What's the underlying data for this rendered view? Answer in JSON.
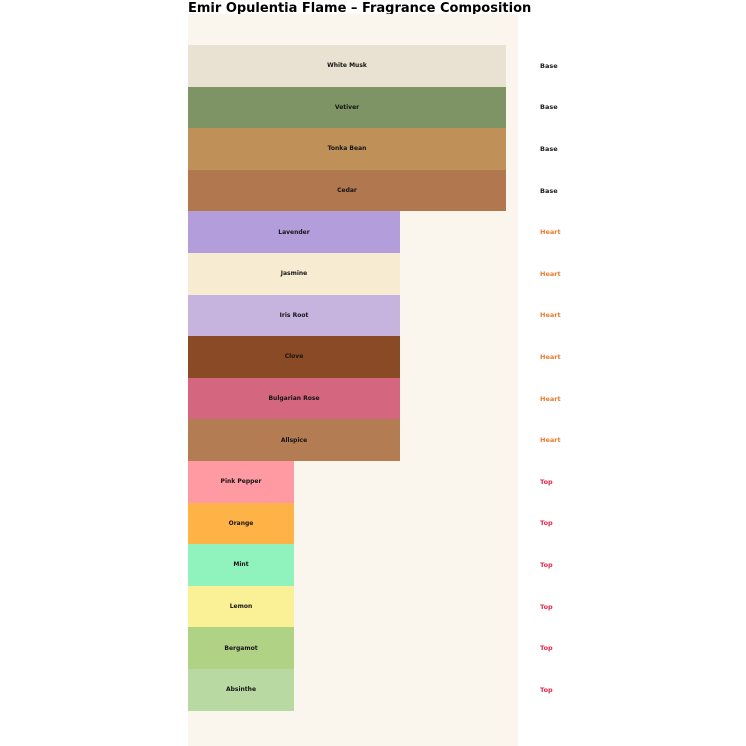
{
  "chart_data": {
    "type": "bar",
    "orientation": "horizontal",
    "title": "Emir Opulentia Flame – Fragrance Composition",
    "xlabel": "",
    "ylabel": "",
    "xlim": [
      0,
      3.1
    ],
    "grid": false,
    "legend_position": "none",
    "background_color": "#faf5ed",
    "tier_label_colors": {
      "Base": "#1a1a1a",
      "Heart": "#e87b2e",
      "Top": "#e3264e"
    },
    "items": [
      {
        "label": "White Musk",
        "tier": "Base",
        "value": 3,
        "color": "#e9e2d2"
      },
      {
        "label": "Vetiver",
        "tier": "Base",
        "value": 3,
        "color": "#7e9464"
      },
      {
        "label": "Tonka Bean",
        "tier": "Base",
        "value": 3,
        "color": "#bf9159"
      },
      {
        "label": "Cedar",
        "tier": "Base",
        "value": 3,
        "color": "#b1784f"
      },
      {
        "label": "Lavender",
        "tier": "Heart",
        "value": 2,
        "color": "#b39ddb"
      },
      {
        "label": "Jasmine",
        "tier": "Heart",
        "value": 2,
        "color": "#f7ecd2"
      },
      {
        "label": "Iris Root",
        "tier": "Heart",
        "value": 2,
        "color": "#c6b4de"
      },
      {
        "label": "Clove",
        "tier": "Heart",
        "value": 2,
        "color": "#8a4a26"
      },
      {
        "label": "Bulgarian Rose",
        "tier": "Heart",
        "value": 2,
        "color": "#d4677f"
      },
      {
        "label": "Allspice",
        "tier": "Heart",
        "value": 2,
        "color": "#b47c52"
      },
      {
        "label": "Pink Pepper",
        "tier": "Top",
        "value": 1,
        "color": "#ff9aa2"
      },
      {
        "label": "Orange",
        "tier": "Top",
        "value": 1,
        "color": "#ffb347"
      },
      {
        "label": "Mint",
        "tier": "Top",
        "value": 1,
        "color": "#90f2bd"
      },
      {
        "label": "Lemon",
        "tier": "Top",
        "value": 1,
        "color": "#faf096"
      },
      {
        "label": "Bergamot",
        "tier": "Top",
        "value": 1,
        "color": "#afd285"
      },
      {
        "label": "Absinthe",
        "tier": "Top",
        "value": 1,
        "color": "#b9d9a3"
      }
    ]
  }
}
